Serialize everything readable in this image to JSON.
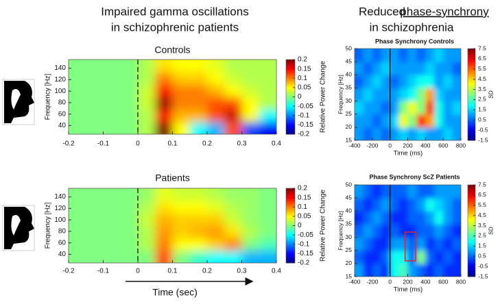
{
  "headers": {
    "left": [
      "Impaired gamma oscillations",
      "in schizophrenic patients"
    ],
    "right": [
      "Reduced",
      "phase-synchrony",
      "in schizophrenia"
    ]
  },
  "chart_data": [
    {
      "type": "heatmap",
      "title": "Controls",
      "ylabel": "Frequency [Hz]",
      "colorbar_label": "Relative Power Change",
      "xlim": [
        -0.2,
        0.4
      ],
      "xticks": [
        -0.2,
        -0.1,
        0,
        0.1,
        0.2,
        0.3,
        0.4
      ],
      "ylim": [
        25,
        155
      ],
      "yticks": [
        40,
        60,
        80,
        100,
        120,
        140
      ],
      "zlim": [
        -0.2,
        0.2
      ],
      "zticks": [
        0.2,
        0.15,
        0.1,
        0.05,
        0,
        -0.05,
        -0.1,
        -0.15,
        -0.2
      ],
      "colormap": "jet",
      "event_line": {
        "x": 0,
        "style": "dashed"
      },
      "z": [
        [
          0,
          0,
          0,
          0,
          0.02,
          0.2,
          0.05,
          -0.05,
          -0.08,
          0.12,
          -0.12,
          -0.15
        ],
        [
          0,
          0,
          0,
          0,
          0.02,
          0.15,
          0.08,
          0.08,
          0.12,
          0.17,
          0.05,
          -0.05
        ],
        [
          0,
          0,
          0,
          0,
          0.03,
          0.19,
          0.1,
          0.1,
          0.12,
          0.12,
          0.05,
          0.02
        ],
        [
          0,
          0,
          0,
          0,
          0.03,
          0.15,
          0.1,
          0.1,
          0.08,
          0.05,
          0.03,
          0.02
        ],
        [
          0,
          0,
          0,
          0,
          0.02,
          0.1,
          0.07,
          0.07,
          0.05,
          0.03,
          0.02,
          0.02
        ],
        [
          0,
          0,
          0,
          0,
          0.02,
          0.06,
          0.05,
          0.05,
          0.04,
          0.02,
          0.02,
          0.02
        ]
      ]
    },
    {
      "type": "heatmap",
      "title": "Patients",
      "ylabel": "Frequency [Hz]",
      "xlabel": "Time (sec)",
      "colorbar_label": "Relative Power Change",
      "xlim": [
        -0.2,
        0.4
      ],
      "xticks": [
        -0.2,
        -0.1,
        0,
        0.1,
        0.2,
        0.3,
        0.4
      ],
      "ylim": [
        25,
        155
      ],
      "yticks": [
        40,
        60,
        80,
        100,
        120,
        140
      ],
      "zlim": [
        -0.2,
        0.2
      ],
      "zticks": [
        0.2,
        0.15,
        0.1,
        0.05,
        0,
        -0.05,
        -0.1,
        -0.15,
        -0.2
      ],
      "colormap": "jet",
      "event_line": {
        "x": 0,
        "style": "dashed"
      },
      "z": [
        [
          0,
          0,
          0,
          0,
          0,
          0.12,
          0,
          -0.03,
          -0.05,
          -0.05,
          -0.08,
          -0.08
        ],
        [
          0,
          0,
          0,
          0,
          0.02,
          0.1,
          0.05,
          0.05,
          0.07,
          0.1,
          0,
          -0.02
        ],
        [
          0,
          0,
          0,
          0,
          0.02,
          0.09,
          0.07,
          0.08,
          0.09,
          0.06,
          0.02,
          0
        ],
        [
          0,
          0,
          0,
          0,
          0.03,
          0.08,
          0.07,
          0.07,
          0.07,
          0.03,
          0.01,
          0
        ],
        [
          0,
          0,
          0,
          0,
          0.02,
          0.06,
          0.05,
          0.05,
          0.04,
          0.02,
          0.01,
          0
        ],
        [
          0,
          0,
          0,
          0,
          0.01,
          0.04,
          0.03,
          0.03,
          0.02,
          0.01,
          0.01,
          0
        ]
      ]
    },
    {
      "type": "heatmap",
      "title": "Phase Synchrony Controls",
      "ylabel": "Frequency [Hz]",
      "xlabel": "Time (ms)",
      "colorbar_label": "SD",
      "xlim": [
        -400,
        800
      ],
      "xticks": [
        -400,
        -200,
        0,
        200,
        400,
        600,
        800
      ],
      "ylim": [
        15,
        50
      ],
      "yticks": [
        15,
        20,
        25,
        30,
        35,
        40,
        45,
        50
      ],
      "zlim": [
        -1.5,
        7.5
      ],
      "zticks": [
        7.5,
        6.5,
        5.5,
        4.5,
        3.5,
        2.5,
        1.5,
        0.5,
        -0.5,
        -1.5
      ],
      "colormap": "jet",
      "event_line": {
        "x": 0,
        "style": "solid"
      },
      "z": [
        [
          1,
          0.5,
          1,
          0.5,
          1,
          1.5,
          1,
          1.5,
          1,
          1,
          1.5,
          1
        ],
        [
          1,
          1,
          0.5,
          1,
          1.5,
          4,
          3,
          6,
          5,
          2,
          1,
          1
        ],
        [
          1.5,
          1,
          1,
          0.5,
          1,
          3,
          4,
          3,
          6,
          2,
          1,
          1.5
        ],
        [
          1,
          1.5,
          1,
          1,
          1,
          1.5,
          2,
          3,
          5,
          1.5,
          1,
          1
        ],
        [
          0.5,
          1,
          1.5,
          1,
          0.5,
          1,
          1.5,
          2,
          2,
          1,
          1.5,
          1
        ],
        [
          1,
          0.5,
          1,
          1.5,
          1,
          1,
          1,
          1,
          1.5,
          1,
          1,
          0.5
        ],
        [
          0.5,
          1,
          0.5,
          1,
          1,
          0.5,
          1,
          0.5,
          1,
          1.5,
          1,
          1
        ]
      ]
    },
    {
      "type": "heatmap",
      "title": "Phase Synchrony ScZ Patients",
      "ylabel": "Frequency [Hz]",
      "xlabel": "Time (ms)",
      "colorbar_label": "SD",
      "xlim": [
        -400,
        800
      ],
      "xticks": [
        -400,
        -200,
        0,
        200,
        400,
        600,
        800
      ],
      "ylim": [
        15,
        50
      ],
      "yticks": [
        15,
        20,
        25,
        30,
        35,
        40,
        45,
        50
      ],
      "zlim": [
        -1.5,
        7.5
      ],
      "zticks": [
        7.5,
        6.5,
        5.5,
        4.5,
        3.5,
        2.5,
        1.5,
        0.5,
        -0.5,
        -1.5
      ],
      "colormap": "jet",
      "event_line": {
        "x": 0,
        "style": "solid"
      },
      "highlight": {
        "x": [
          170,
          290
        ],
        "y": [
          21,
          32
        ],
        "color": "#e0262b"
      },
      "z": [
        [
          1,
          0,
          0.5,
          0,
          2,
          2.5,
          1,
          0.5,
          0,
          0.5,
          0,
          0
        ],
        [
          0.5,
          0,
          0,
          0.5,
          2,
          2,
          0.5,
          3,
          0.5,
          0,
          0.5,
          0
        ],
        [
          1,
          0.5,
          0,
          0,
          1,
          1,
          0.5,
          1,
          0,
          0.5,
          0,
          0.5
        ],
        [
          0.5,
          1,
          0.5,
          0,
          0.5,
          0,
          0,
          0.5,
          0.5,
          1,
          0.5,
          0
        ],
        [
          0,
          0.5,
          1,
          0.5,
          0,
          0,
          0.5,
          0.5,
          1,
          2,
          1,
          0.5
        ],
        [
          0.5,
          0,
          0.5,
          1,
          0.5,
          0,
          0.5,
          1,
          2,
          1.5,
          1,
          0.5
        ],
        [
          1,
          0.5,
          0,
          0.5,
          0.5,
          0.5,
          1,
          0.5,
          0.5,
          1,
          1,
          1
        ]
      ]
    }
  ]
}
